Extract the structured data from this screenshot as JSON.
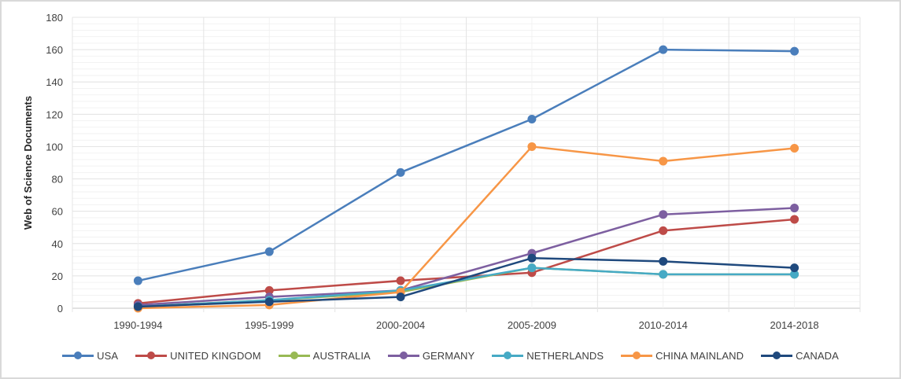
{
  "chart_data": {
    "type": "line",
    "title": "",
    "xlabel": "",
    "ylabel": "Web of Science Documents",
    "ylim": [
      0,
      180
    ],
    "yticks": [
      0,
      20,
      40,
      60,
      80,
      100,
      120,
      140,
      160,
      180
    ],
    "grid": true,
    "legend_position": "bottom",
    "categories": [
      "1990-1994",
      "1995-1999",
      "2000-2004",
      "2005-2009",
      "2010-2014",
      "2014-2018"
    ],
    "series": [
      {
        "name": "USA",
        "color": "#4a7ebb",
        "values": [
          17,
          35,
          84,
          117,
          160,
          159
        ]
      },
      {
        "name": "UNITED KINGDOM",
        "color": "#be4b48",
        "values": [
          3,
          11,
          17,
          22,
          48,
          55
        ]
      },
      {
        "name": "AUSTRALIA",
        "color": "#98b954",
        "values": [
          1,
          5,
          10,
          25,
          21,
          21
        ]
      },
      {
        "name": "GERMANY",
        "color": "#7d5fa0",
        "values": [
          2,
          7,
          11,
          34,
          58,
          62
        ]
      },
      {
        "name": "NETHERLANDS",
        "color": "#46aac5",
        "values": [
          1,
          5,
          11,
          25,
          21,
          21
        ]
      },
      {
        "name": "CHINA MAINLAND",
        "color": "#f79646",
        "values": [
          0,
          2,
          10,
          100,
          91,
          99
        ]
      },
      {
        "name": "CANADA",
        "color": "#1f497d",
        "values": [
          1,
          4,
          7,
          31,
          29,
          25
        ]
      }
    ]
  }
}
